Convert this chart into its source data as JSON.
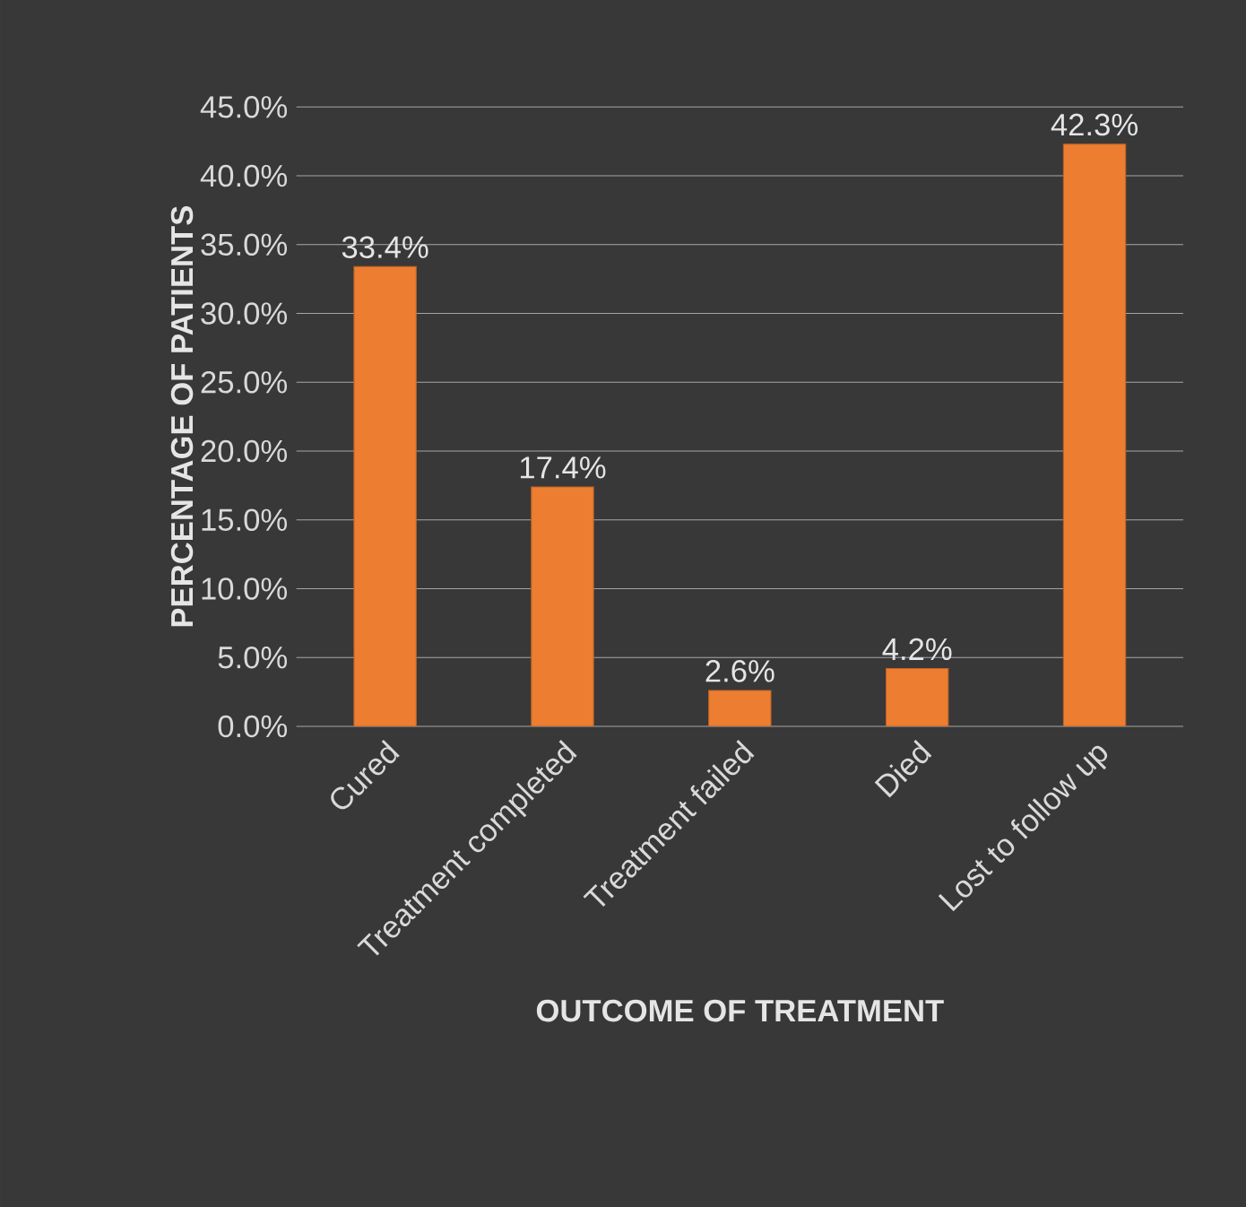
{
  "chart_data": {
    "type": "bar",
    "xlabel": "OUTCOME OF TREATMENT",
    "ylabel": "PERCENTAGE OF PATIENTS",
    "categories": [
      "Cured",
      "Treatment completed",
      "Treatment failed",
      "Died",
      "Lost to follow up"
    ],
    "values": [
      33.4,
      17.4,
      2.6,
      4.2,
      42.3
    ],
    "value_labels": [
      "33.4%",
      "17.4%",
      "2.6%",
      "4.2%",
      "42.3%"
    ],
    "color": "#ed7d31",
    "ylim": [
      0,
      45
    ],
    "yticks": [
      {
        "value": 0,
        "label": "0.0%"
      },
      {
        "value": 5,
        "label": "5.0%"
      },
      {
        "value": 10,
        "label": "10.0%"
      },
      {
        "value": 15,
        "label": "15.0%"
      },
      {
        "value": 20,
        "label": "20.0%"
      },
      {
        "value": 25,
        "label": "25.0%"
      },
      {
        "value": 30,
        "label": "30.0%"
      },
      {
        "value": 35,
        "label": "35.0%"
      },
      {
        "value": 40,
        "label": "40.0%"
      },
      {
        "value": 45,
        "label": "45.0%"
      }
    ],
    "grid": "y"
  }
}
